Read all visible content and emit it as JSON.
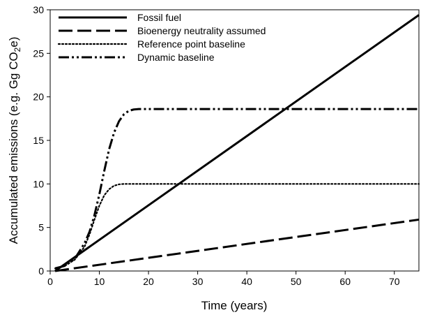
{
  "chart_data": {
    "type": "line",
    "xlabel": "Time (years)",
    "ylabel_parts": [
      "Accumulated emissions (e.g. Gg CO",
      "2",
      "e)"
    ],
    "xlim": [
      0,
      75
    ],
    "ylim": [
      0,
      30
    ],
    "xticks": [
      0,
      10,
      20,
      30,
      40,
      50,
      60,
      70
    ],
    "yticks": [
      0,
      5,
      10,
      15,
      20,
      25,
      30
    ],
    "legend_position": "top-left",
    "grid": false,
    "series": [
      {
        "name": "Fossil fuel",
        "style": "solid",
        "x": [
          1,
          75
        ],
        "y": [
          0,
          29.4
        ]
      },
      {
        "name": "Bioenergy neutrality assumed",
        "style": "dashed",
        "x": [
          1,
          75
        ],
        "y": [
          0,
          5.9
        ]
      },
      {
        "name": "Reference point baseline",
        "style": "dotted",
        "x": [
          1,
          3,
          5,
          7,
          8,
          9,
          10,
          11,
          12,
          13,
          14,
          15,
          16,
          18,
          20,
          30,
          40,
          50,
          60,
          75
        ],
        "y": [
          0.3,
          0.6,
          1.3,
          2.8,
          4.2,
          5.9,
          7.5,
          8.7,
          9.4,
          9.8,
          9.95,
          10,
          10,
          10,
          10,
          10,
          10,
          10,
          10,
          10
        ]
      },
      {
        "name": "Dynamic baseline",
        "style": "dashdotdot",
        "x": [
          1,
          3,
          5,
          7,
          8,
          9,
          10,
          11,
          12,
          13,
          14,
          15,
          16,
          17,
          18,
          19,
          20,
          30,
          40,
          50,
          60,
          75
        ],
        "y": [
          0.3,
          0.6,
          1.4,
          3.2,
          4.5,
          6.4,
          8.8,
          11.5,
          14,
          15.9,
          17.2,
          18,
          18.4,
          18.55,
          18.6,
          18.6,
          18.6,
          18.6,
          18.6,
          18.6,
          18.6,
          18.6
        ]
      }
    ]
  }
}
